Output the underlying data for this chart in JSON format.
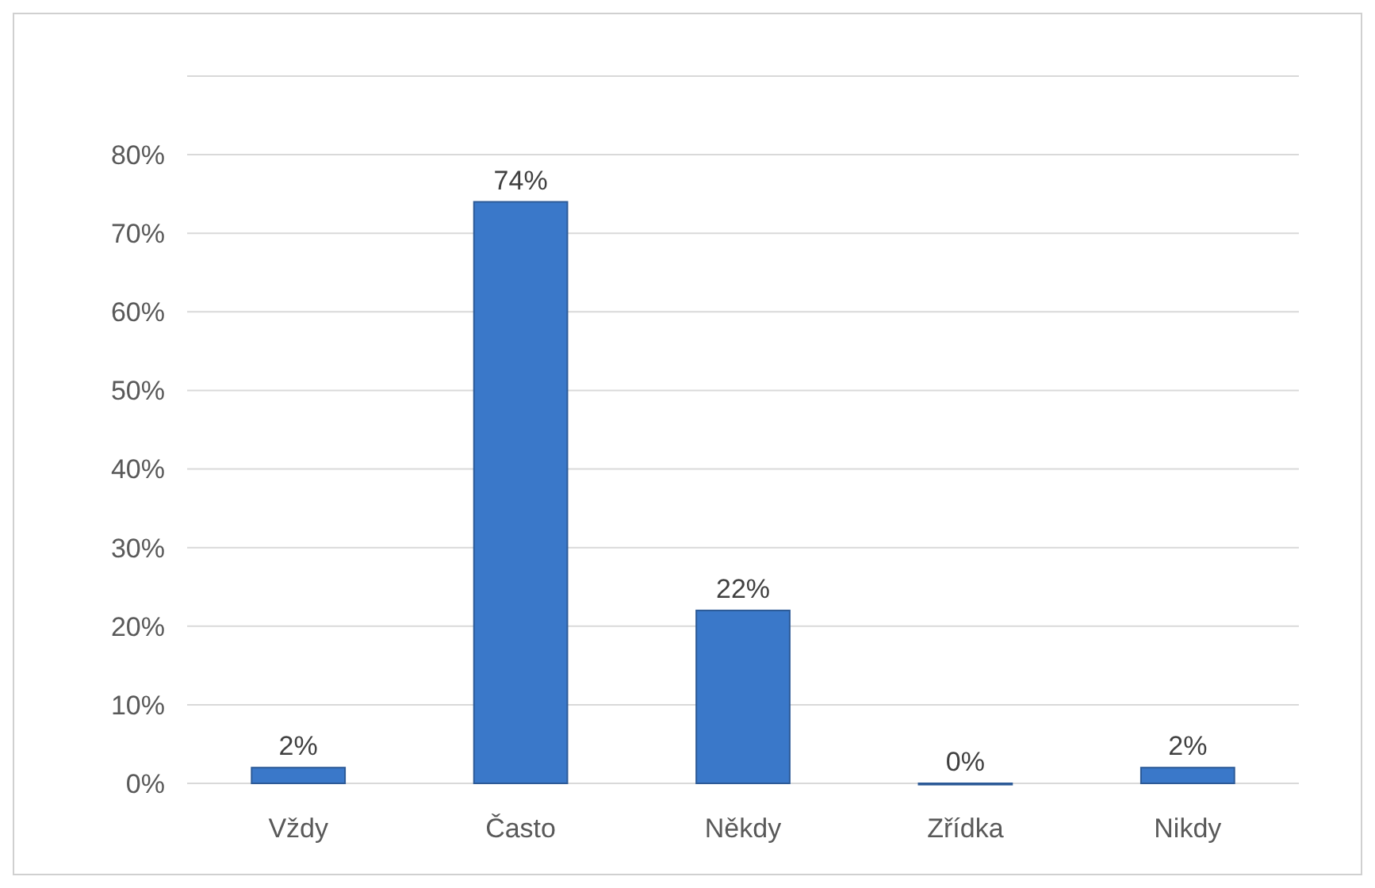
{
  "chart_data": {
    "type": "bar",
    "categories": [
      "Vždy",
      "Často",
      "Někdy",
      "Zřídka",
      "Nikdy"
    ],
    "values": [
      2,
      74,
      22,
      0,
      2
    ],
    "value_labels": [
      "2%",
      "74%",
      "22%",
      "0%",
      "2%"
    ],
    "color": "#3a78c9",
    "ylim": [
      0,
      90
    ],
    "yticks": [
      {
        "value": 0,
        "label": "0%"
      },
      {
        "value": 10,
        "label": "10%"
      },
      {
        "value": 20,
        "label": "20%"
      },
      {
        "value": 30,
        "label": "30%"
      },
      {
        "value": 40,
        "label": "40%"
      },
      {
        "value": 50,
        "label": "50%"
      },
      {
        "value": 60,
        "label": "60%"
      },
      {
        "value": 70,
        "label": "70%"
      },
      {
        "value": 80,
        "label": "80%"
      },
      {
        "value": 90,
        "label": null
      }
    ],
    "grid": "y"
  }
}
